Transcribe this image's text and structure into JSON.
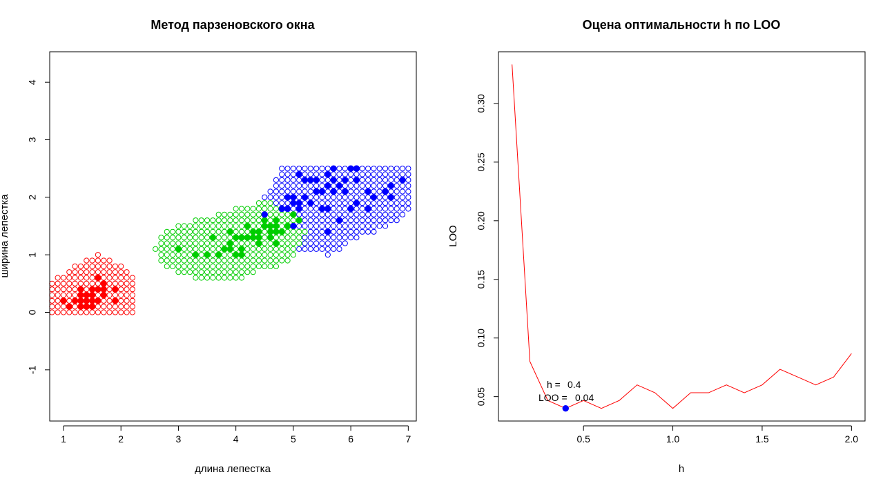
{
  "chart_data": [
    {
      "type": "scatter",
      "title": "Метод парзеновского окна",
      "xlabel": "длина лепестка",
      "ylabel": "ширина лепестка",
      "xlim": [
        0.76,
        7.14
      ],
      "ylim": [
        -1.89,
        4.53
      ],
      "x_ticks": [
        1,
        2,
        3,
        4,
        5,
        6,
        7
      ],
      "y_ticks": [
        -1,
        0,
        1,
        2,
        3,
        4
      ],
      "grid": false,
      "colors": {
        "setosa": "#ff0000",
        "versicolor": "#00cd00",
        "virginica": "#0000ff"
      },
      "classification_grid": {
        "step": 0.1,
        "regions": [
          {
            "class": "setosa",
            "color": "#ff0000",
            "rows": [
              {
                "y": 0.0,
                "x_from": 0.8,
                "x_to": 2.2
              },
              {
                "y": 0.1,
                "x_from": 0.8,
                "x_to": 2.2
              },
              {
                "y": 0.2,
                "x_from": 0.8,
                "x_to": 2.2
              },
              {
                "y": 0.3,
                "x_from": 0.8,
                "x_to": 2.2
              },
              {
                "y": 0.4,
                "x_from": 0.8,
                "x_to": 2.2
              },
              {
                "y": 0.5,
                "x_from": 0.8,
                "x_to": 2.2
              },
              {
                "y": 0.6,
                "x_from": 0.9,
                "x_to": 2.2
              },
              {
                "y": 0.7,
                "x_from": 1.1,
                "x_to": 2.1
              },
              {
                "y": 0.8,
                "x_from": 1.2,
                "x_to": 2.0
              },
              {
                "y": 0.9,
                "x_from": 1.4,
                "x_to": 1.8
              },
              {
                "y": 1.0,
                "x_from": 1.6,
                "x_to": 1.6
              }
            ]
          },
          {
            "class": "versicolor",
            "color": "#00cd00",
            "rows": [
              {
                "y": 0.6,
                "x_from": 3.3,
                "x_to": 4.1
              },
              {
                "y": 0.7,
                "x_from": 3.0,
                "x_to": 4.3
              },
              {
                "y": 0.8,
                "x_from": 2.8,
                "x_to": 4.7
              },
              {
                "y": 0.9,
                "x_from": 2.7,
                "x_to": 4.9
              },
              {
                "y": 1.0,
                "x_from": 2.7,
                "x_to": 5.0
              },
              {
                "y": 1.1,
                "x_from": 2.6,
                "x_to": 5.0
              },
              {
                "y": 1.2,
                "x_from": 2.7,
                "x_to": 5.2
              },
              {
                "y": 1.3,
                "x_from": 2.7,
                "x_to": 5.2
              },
              {
                "y": 1.4,
                "x_from": 2.8,
                "x_to": 5.2
              },
              {
                "y": 1.5,
                "x_from": 3.0,
                "x_to": 5.0
              },
              {
                "y": 1.6,
                "x_from": 3.3,
                "x_to": 5.0
              },
              {
                "y": 1.7,
                "x_from": 3.7,
                "x_to": 4.9
              },
              {
                "y": 1.8,
                "x_from": 4.0,
                "x_to": 4.7
              },
              {
                "y": 1.9,
                "x_from": 4.4,
                "x_to": 4.6
              }
            ]
          },
          {
            "class": "virginica",
            "color": "#0000ff",
            "rows": [
              {
                "y": 1.0,
                "x_from": 5.6,
                "x_to": 5.6
              },
              {
                "y": 1.1,
                "x_from": 5.1,
                "x_to": 5.8
              },
              {
                "y": 1.2,
                "x_from": 5.2,
                "x_to": 5.9
              },
              {
                "y": 1.3,
                "x_from": 5.2,
                "x_to": 6.1
              },
              {
                "y": 1.4,
                "x_from": 5.3,
                "x_to": 6.4
              },
              {
                "y": 1.5,
                "x_from": 5.1,
                "x_to": 6.6
              },
              {
                "y": 1.6,
                "x_from": 5.1,
                "x_to": 6.8
              },
              {
                "y": 1.7,
                "x_from": 5.0,
                "x_to": 6.9
              },
              {
                "y": 1.8,
                "x_from": 4.8,
                "x_to": 7.0
              },
              {
                "y": 1.9,
                "x_from": 4.7,
                "x_to": 7.0
              },
              {
                "y": 2.0,
                "x_from": 4.5,
                "x_to": 7.0
              },
              {
                "y": 2.1,
                "x_from": 4.6,
                "x_to": 7.0
              },
              {
                "y": 2.2,
                "x_from": 4.7,
                "x_to": 7.0
              },
              {
                "y": 2.3,
                "x_from": 4.7,
                "x_to": 7.0
              },
              {
                "y": 2.4,
                "x_from": 4.8,
                "x_to": 7.0
              },
              {
                "y": 2.5,
                "x_from": 4.8,
                "x_to": 7.0
              }
            ]
          }
        ]
      },
      "series": [
        {
          "class": "setosa",
          "color": "#ff0000",
          "points": [
            [
              1.4,
              0.2
            ],
            [
              1.3,
              0.2
            ],
            [
              1.5,
              0.2
            ],
            [
              1.7,
              0.4
            ],
            [
              1.4,
              0.3
            ],
            [
              1.5,
              0.1
            ],
            [
              1.6,
              0.2
            ],
            [
              1.1,
              0.1
            ],
            [
              1.2,
              0.2
            ],
            [
              1.3,
              0.4
            ],
            [
              1.7,
              0.3
            ],
            [
              1.5,
              0.4
            ],
            [
              1.0,
              0.2
            ],
            [
              1.7,
              0.5
            ],
            [
              1.9,
              0.2
            ],
            [
              1.6,
              0.4
            ],
            [
              1.4,
              0.1
            ],
            [
              1.5,
              0.3
            ],
            [
              1.6,
              0.6
            ],
            [
              1.9,
              0.4
            ],
            [
              1.3,
              0.3
            ],
            [
              1.3,
              0.1
            ]
          ]
        },
        {
          "class": "versicolor",
          "color": "#00cd00",
          "points": [
            [
              4.7,
              1.4
            ],
            [
              4.5,
              1.5
            ],
            [
              4.9,
              1.5
            ],
            [
              4.0,
              1.3
            ],
            [
              4.6,
              1.5
            ],
            [
              3.3,
              1.0
            ],
            [
              4.2,
              1.3
            ],
            [
              3.9,
              1.4
            ],
            [
              3.5,
              1.0
            ],
            [
              4.1,
              1.0
            ],
            [
              4.4,
              1.4
            ],
            [
              4.8,
              1.8
            ],
            [
              4.3,
              1.3
            ],
            [
              5.0,
              1.7
            ],
            [
              3.8,
              1.1
            ],
            [
              3.7,
              1.0
            ],
            [
              4.5,
              1.6
            ],
            [
              4.4,
              1.3
            ],
            [
              3.0,
              1.1
            ],
            [
              4.7,
              1.2
            ],
            [
              4.0,
              1.0
            ],
            [
              4.6,
              1.4
            ],
            [
              5.1,
              1.6
            ],
            [
              4.4,
              1.2
            ],
            [
              3.6,
              1.3
            ],
            [
              4.9,
              1.5
            ],
            [
              4.1,
              1.3
            ],
            [
              3.9,
              1.2
            ],
            [
              4.6,
              1.3
            ],
            [
              4.1,
              1.1
            ],
            [
              4.2,
              1.5
            ],
            [
              3.9,
              1.1
            ],
            [
              4.8,
              1.4
            ],
            [
              4.7,
              1.6
            ],
            [
              4.3,
              1.4
            ],
            [
              4.7,
              1.5
            ]
          ]
        },
        {
          "class": "virginica",
          "color": "#0000ff",
          "points": [
            [
              6.0,
              2.5
            ],
            [
              5.1,
              1.9
            ],
            [
              5.9,
              2.1
            ],
            [
              5.6,
              1.8
            ],
            [
              5.8,
              2.2
            ],
            [
              6.6,
              2.1
            ],
            [
              4.5,
              1.7
            ],
            [
              6.3,
              1.8
            ],
            [
              6.1,
              2.5
            ],
            [
              5.3,
              1.9
            ],
            [
              5.5,
              2.1
            ],
            [
              5.0,
              2.0
            ],
            [
              5.1,
              2.4
            ],
            [
              5.3,
              2.3
            ],
            [
              6.7,
              2.2
            ],
            [
              6.9,
              2.3
            ],
            [
              5.0,
              1.5
            ],
            [
              5.7,
              2.3
            ],
            [
              4.9,
              2.0
            ],
            [
              6.7,
              2.0
            ],
            [
              4.9,
              1.8
            ],
            [
              5.7,
              2.1
            ],
            [
              6.0,
              1.8
            ],
            [
              4.8,
              1.8
            ],
            [
              5.8,
              1.6
            ],
            [
              6.4,
              2.0
            ],
            [
              5.6,
              1.4
            ],
            [
              6.1,
              2.3
            ],
            [
              5.6,
              2.4
            ],
            [
              5.5,
              1.8
            ],
            [
              5.4,
              2.1
            ],
            [
              5.6,
              2.2
            ],
            [
              5.7,
              2.5
            ],
            [
              5.2,
              2.3
            ],
            [
              5.2,
              2.0
            ],
            [
              6.1,
              1.9
            ],
            [
              5.4,
              2.3
            ],
            [
              5.1,
              1.8
            ],
            [
              5.9,
              2.3
            ],
            [
              5.0,
              1.9
            ],
            [
              6.3,
              2.1
            ],
            [
              5.6,
              2.2
            ],
            [
              6.1,
              2.5
            ]
          ]
        }
      ]
    },
    {
      "type": "line",
      "title": "Оцена оптимальности  h по LOO",
      "xlabel": "h",
      "ylabel": "LOO",
      "xlim": [
        0.024,
        2.076
      ],
      "ylim": [
        0.0292,
        0.3441
      ],
      "x_ticks": [
        "0.5",
        "1.0",
        "1.5",
        "2.0"
      ],
      "y_ticks": [
        "0.05",
        "0.10",
        "0.15",
        "0.20",
        "0.25",
        "0.30"
      ],
      "grid": false,
      "line_color": "#ff0000",
      "x": [
        0.1,
        0.2,
        0.3,
        0.4,
        0.5,
        0.6,
        0.7,
        0.8,
        0.9,
        1.0,
        1.1,
        1.2,
        1.3,
        1.4,
        1.5,
        1.6,
        1.7,
        1.8,
        1.9,
        2.0
      ],
      "y": [
        0.3333,
        0.08,
        0.0467,
        0.04,
        0.0467,
        0.04,
        0.0467,
        0.06,
        0.0533,
        0.04,
        0.0533,
        0.0533,
        0.06,
        0.0533,
        0.06,
        0.0733,
        0.0667,
        0.06,
        0.0667,
        0.0867
      ],
      "optimum": {
        "h": 0.4,
        "loo": 0.04,
        "color": "#0000ff"
      },
      "annotation": {
        "h_label": "h =",
        "h_value": "0.4",
        "loo_label": "LOO =",
        "loo_value": "0.04"
      }
    }
  ]
}
